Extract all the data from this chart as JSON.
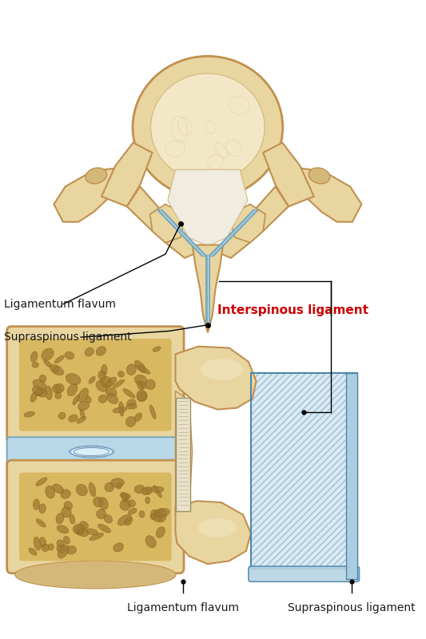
{
  "background_color": "#ffffff",
  "bone_light": "#e8d5a0",
  "bone_mid": "#d4b87a",
  "bone_dark": "#c09050",
  "bone_inner": "#f2e8c8",
  "bone_cancellous": "#c8a855",
  "bone_cancellous_dark": "#a07830",
  "disc_blue": "#b8d8e8",
  "disc_blue_dark": "#7aaabb",
  "lig_blue_fill": "#c8dff0",
  "lig_blue_edge": "#7aaabb",
  "lig_blue_stripe": "#a0c4d8",
  "text_color": "#1a1a1a",
  "red_color": "#cc0000",
  "label_lf_top": "Ligamentum flavum",
  "label_ss_top": "Supraspinous ligament",
  "label_interspinous": "Interspinous ligament",
  "label_lf_bottom": "Ligamentum flavum",
  "label_ss_bottom": "Supraspinous ligament",
  "figsize": [
    5.33,
    8.0
  ],
  "dpi": 100
}
